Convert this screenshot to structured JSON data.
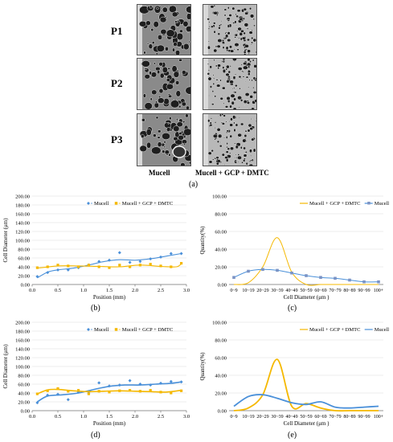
{
  "sem_panel": {
    "row_labels": [
      "P1",
      "P2",
      "P3"
    ],
    "col_labels": [
      "Mucell",
      "Mucell + GCP + DMTC"
    ],
    "figure_label": "(a)"
  },
  "panel_labels": {
    "b": "(b)",
    "c": "(c)",
    "d": "(d)",
    "e": "(e)"
  },
  "colors": {
    "mucell": "#4A90D9",
    "gcp": "#F5B800"
  },
  "chart_data": [
    {
      "id": "b",
      "type": "scatter",
      "title": "",
      "xlabel": "Position (mm)",
      "ylabel": "Cell Diameter (μm)",
      "xlim": [
        0.0,
        3.0
      ],
      "ylim": [
        0,
        200
      ],
      "xticks": [
        "0.0",
        "0.5",
        "1.0",
        "1.5",
        "2.0",
        "2.5",
        "3.0"
      ],
      "yticks": [
        "0.00",
        "20.00",
        "40.00",
        "60.00",
        "80.00",
        "100.00",
        "120.00",
        "140.00",
        "160.00",
        "180.00",
        "200.00"
      ],
      "legend": [
        "Mucell",
        "Mucell + GCP + DMTC"
      ],
      "legend_position": "top-right",
      "series": [
        {
          "name": "Mucell",
          "color": "#4A90D9",
          "marker": "diamond",
          "x": [
            0.1,
            0.3,
            0.5,
            0.7,
            0.9,
            1.1,
            1.3,
            1.5,
            1.7,
            1.9,
            2.1,
            2.3,
            2.5,
            2.7,
            2.9
          ],
          "y": [
            18,
            27,
            33,
            33,
            38,
            44,
            52,
            55,
            72,
            50,
            52,
            58,
            62,
            70,
            70
          ],
          "trend_x": [
            0.1,
            0.3,
            0.5,
            0.8,
            1.1,
            1.4,
            1.7,
            2.0,
            2.3,
            2.6,
            2.9
          ],
          "trend_y": [
            15,
            28,
            33,
            37,
            44,
            52,
            56,
            55,
            58,
            64,
            70
          ]
        },
        {
          "name": "Mucell + GCP + DMTC",
          "color": "#F5B800",
          "marker": "square",
          "x": [
            0.1,
            0.3,
            0.5,
            0.7,
            0.9,
            1.1,
            1.3,
            1.5,
            1.7,
            1.9,
            2.1,
            2.3,
            2.5,
            2.7,
            2.9
          ],
          "y": [
            38,
            40,
            44,
            42,
            40,
            44,
            40,
            38,
            44,
            40,
            44,
            46,
            42,
            40,
            48
          ],
          "trend_x": [
            0.1,
            0.5,
            0.9,
            1.3,
            1.7,
            2.1,
            2.5,
            2.8,
            2.9
          ],
          "trend_y": [
            37,
            42,
            42,
            41,
            40,
            44,
            41,
            40,
            47
          ]
        }
      ]
    },
    {
      "id": "c",
      "type": "line",
      "title": "",
      "xlabel": "Cell Diameter (μm )",
      "ylabel": "Quantity(%)",
      "categories": [
        "0~9",
        "10~19",
        "20~29",
        "30~39",
        "40~49",
        "50~59",
        "60~69",
        "70~79",
        "80~89",
        "90~99",
        "100+"
      ],
      "ylim": [
        0,
        100
      ],
      "yticks": [
        "0.00",
        "20.00",
        "40.00",
        "60.00",
        "80.00",
        "100.00"
      ],
      "legend": [
        "Mucell + GCP + DMTC",
        "Mucell"
      ],
      "legend_position": "top-right",
      "series": [
        {
          "name": "Mucell + GCP + DMTC",
          "color": "#F5B800",
          "marker": "none",
          "values": [
            0,
            2,
            20,
            53,
            14,
            0,
            0,
            0,
            0,
            0,
            0
          ]
        },
        {
          "name": "Mucell",
          "color": "#4A90D9",
          "marker": "square",
          "values": [
            8,
            15,
            17,
            16,
            13,
            10,
            8,
            7,
            5,
            3,
            3
          ]
        }
      ]
    },
    {
      "id": "d",
      "type": "scatter",
      "title": "",
      "xlabel": "Position (mm)",
      "ylabel": "Cell Diameter (μm)",
      "xlim": [
        0.0,
        3.0
      ],
      "ylim": [
        0,
        200
      ],
      "xticks": [
        "0.0",
        "0.5",
        "1.0",
        "1.5",
        "2.0",
        "2.5",
        "3.0"
      ],
      "yticks": [
        "0.00",
        "20.00",
        "40.00",
        "60.00",
        "80.00",
        "100.00",
        "120.00",
        "140.00",
        "160.00",
        "180.00",
        "200.00"
      ],
      "legend": [
        "Mucell",
        "Mucell + GCP + DMTC"
      ],
      "legend_position": "top-right",
      "series": [
        {
          "name": "Mucell",
          "color": "#4A90D9",
          "marker": "diamond",
          "x": [
            0.1,
            0.3,
            0.5,
            0.7,
            0.9,
            1.1,
            1.3,
            1.5,
            1.7,
            1.9,
            2.1,
            2.3,
            2.5,
            2.7,
            2.9
          ],
          "y": [
            18,
            35,
            37,
            25,
            42,
            40,
            63,
            56,
            58,
            68,
            60,
            58,
            62,
            66,
            65
          ],
          "trend_x": [
            0.1,
            0.3,
            0.6,
            0.9,
            1.2,
            1.5,
            1.8,
            2.1,
            2.4,
            2.7,
            2.9
          ],
          "trend_y": [
            20,
            33,
            36,
            40,
            48,
            55,
            58,
            58,
            60,
            62,
            65
          ]
        },
        {
          "name": "Mucell + GCP + DMTC",
          "color": "#F5B800",
          "marker": "square",
          "x": [
            0.1,
            0.3,
            0.5,
            0.7,
            0.9,
            1.1,
            1.3,
            1.5,
            1.7,
            1.9,
            2.1,
            2.3,
            2.5,
            2.7,
            2.9
          ],
          "y": [
            38,
            45,
            50,
            44,
            46,
            38,
            44,
            42,
            45,
            46,
            44,
            46,
            42,
            40,
            45
          ],
          "trend_x": [
            0.1,
            0.3,
            0.5,
            0.8,
            1.1,
            1.4,
            1.7,
            2.0,
            2.3,
            2.6,
            2.9
          ],
          "trend_y": [
            38,
            47,
            48,
            45,
            43,
            44,
            45,
            44,
            43,
            42,
            46
          ]
        }
      ]
    },
    {
      "id": "e",
      "type": "line",
      "title": "",
      "xlabel": "Cell Diameter (μm )",
      "ylabel": "Quantity(%)",
      "categories": [
        "0~9",
        "10~19",
        "20~29",
        "30~39",
        "40~49",
        "50~59",
        "60~69",
        "70~79",
        "80~89",
        "90~99",
        "100+"
      ],
      "ylim": [
        0,
        100
      ],
      "yticks": [
        "0.00",
        "20.00",
        "40.00",
        "60.00",
        "80.00",
        "100.00"
      ],
      "legend": [
        "Mucell + GCP + DMTC",
        "Mucell"
      ],
      "legend_position": "top-right",
      "series": [
        {
          "name": "Mucell + GCP + DMTC",
          "color": "#F5B800",
          "marker": "none",
          "values": [
            0,
            3,
            18,
            58,
            5,
            8,
            3,
            0,
            0,
            0,
            0
          ]
        },
        {
          "name": "Mucell",
          "color": "#4A90D9",
          "marker": "none",
          "values": [
            5,
            16,
            18,
            14,
            9,
            7,
            10,
            4,
            3,
            4,
            5
          ]
        }
      ]
    }
  ]
}
